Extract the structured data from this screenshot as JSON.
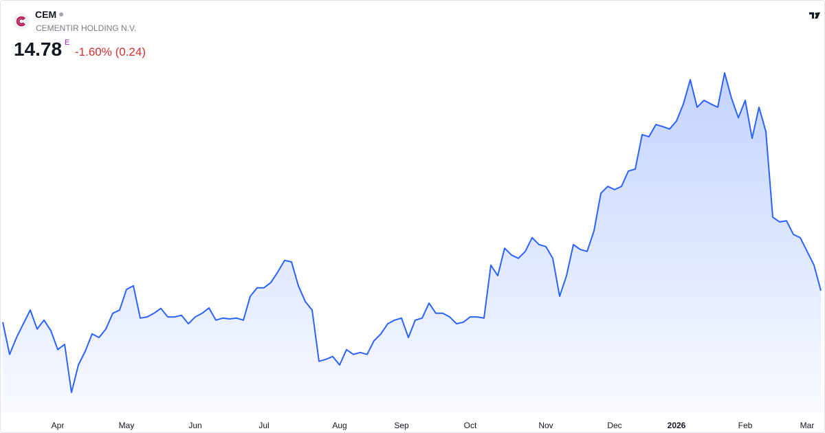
{
  "header": {
    "symbol": "CEM",
    "name": "CEMENTIR HOLDING N.V.",
    "price": "14.78",
    "flag": "E",
    "change": "-1.60% (0.24)"
  },
  "chart_data": {
    "type": "line",
    "color": "#2962ff",
    "categories": [
      null,
      null,
      null,
      null,
      null,
      null,
      null,
      null,
      "Apr",
      null,
      null,
      null,
      null,
      null,
      null,
      null,
      null,
      null,
      "May",
      null,
      null,
      null,
      null,
      null,
      null,
      null,
      null,
      null,
      "Jun",
      null,
      null,
      null,
      null,
      null,
      null,
      null,
      null,
      null,
      "Jul",
      null,
      null,
      null,
      null,
      null,
      null,
      null,
      null,
      null,
      null,
      "Aug",
      null,
      null,
      null,
      null,
      null,
      null,
      null,
      null,
      "Sep",
      null,
      null,
      null,
      null,
      null,
      null,
      null,
      null,
      null,
      "Oct",
      null,
      null,
      null,
      null,
      null,
      null,
      null,
      null,
      null,
      null,
      "Nov",
      null,
      null,
      null,
      null,
      null,
      null,
      null,
      null,
      null,
      "Dec",
      null,
      null,
      null,
      null,
      null,
      null,
      null,
      null,
      "2026",
      null,
      null,
      null,
      null,
      null,
      null,
      null,
      null,
      null,
      "Feb",
      null,
      null,
      null,
      null,
      null,
      null,
      null,
      null,
      "Mar",
      null,
      null
    ],
    "values": [
      14.0,
      13.2,
      13.62,
      13.96,
      14.3,
      13.83,
      14.05,
      13.79,
      13.32,
      13.45,
      12.26,
      12.94,
      13.28,
      13.71,
      13.62,
      13.83,
      14.22,
      14.3,
      14.81,
      14.9,
      14.1,
      14.13,
      14.22,
      14.34,
      14.13,
      14.13,
      14.17,
      13.96,
      14.13,
      14.22,
      14.35,
      14.05,
      14.1,
      14.08,
      14.1,
      14.05,
      14.64,
      14.85,
      14.85,
      14.98,
      15.24,
      15.53,
      15.49,
      14.9,
      14.51,
      14.3,
      13.03,
      13.08,
      13.15,
      12.94,
      13.32,
      13.2,
      13.25,
      13.2,
      13.54,
      13.71,
      13.96,
      14.05,
      14.1,
      13.62,
      14.05,
      14.1,
      14.47,
      14.22,
      14.22,
      14.13,
      13.96,
      14.0,
      14.13,
      14.13,
      14.1,
      15.41,
      15.15,
      15.83,
      15.66,
      15.58,
      15.75,
      16.09,
      15.92,
      15.87,
      15.58,
      14.64,
      15.15,
      15.92,
      15.8,
      15.75,
      16.26,
      17.19,
      17.36,
      17.28,
      17.36,
      17.74,
      17.79,
      18.64,
      18.59,
      18.89,
      18.84,
      18.78,
      18.98,
      19.4,
      20.0,
      19.32,
      19.49,
      19.4,
      19.32,
      20.17,
      19.54,
      19.06,
      19.49,
      18.55,
      19.32,
      18.72,
      16.6,
      16.48,
      16.51,
      16.17,
      16.09,
      15.75,
      15.41,
      14.78
    ]
  }
}
